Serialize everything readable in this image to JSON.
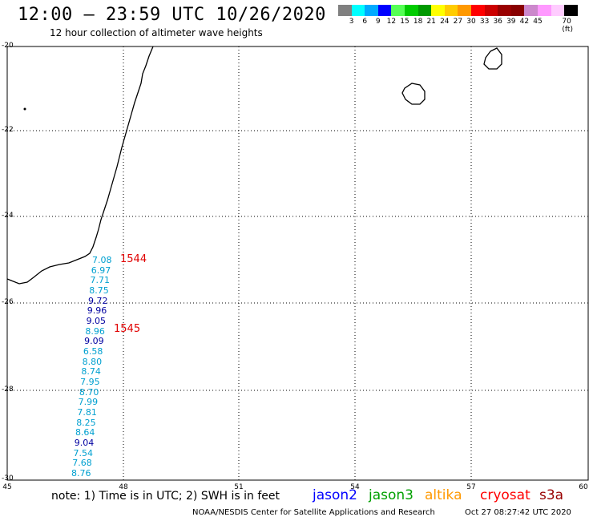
{
  "header": {
    "title": "12:00 – 23:59 UTC 10/26/2020",
    "subtitle": "12 hour collection of altimeter wave heights"
  },
  "legend": {
    "colors": [
      "#808080",
      "#00ffff",
      "#00aaff",
      "#0000ff",
      "#55ff55",
      "#00cc00",
      "#009900",
      "#ffff00",
      "#ffcc00",
      "#ff9900",
      "#ff0000",
      "#cc0000",
      "#990000",
      "#880000",
      "#cc88cc",
      "#ff99ff",
      "#ffccff",
      "#000000"
    ],
    "labels": [
      "3",
      "6",
      "9",
      "12",
      "15",
      "18",
      "21",
      "24",
      "27",
      "30",
      "33",
      "36",
      "39",
      "42",
      "45",
      "70 (ft)"
    ]
  },
  "axes": {
    "y_labels": [
      "-20",
      "-22",
      "-24",
      "-26",
      "-28",
      "-30"
    ],
    "x_labels": [
      "45",
      "48",
      "51",
      "54",
      "57",
      "60"
    ]
  },
  "observations": {
    "swh": [
      {
        "v": "7.08",
        "c": "#00a0d0"
      },
      {
        "v": "6.97",
        "c": "#00a0d0"
      },
      {
        "v": "7.71",
        "c": "#00a0d0"
      },
      {
        "v": "8.75",
        "c": "#00a0d0"
      },
      {
        "v": "9.72",
        "c": "#0000a0"
      },
      {
        "v": "9.96",
        "c": "#0000a0"
      },
      {
        "v": "9.05",
        "c": "#0000a0"
      },
      {
        "v": "8.96",
        "c": "#00a0d0"
      },
      {
        "v": "9.09",
        "c": "#0000a0"
      },
      {
        "v": "6.58",
        "c": "#00a0d0"
      },
      {
        "v": "8.80",
        "c": "#00a0d0"
      },
      {
        "v": "8.74",
        "c": "#00a0d0"
      },
      {
        "v": "7.95",
        "c": "#00a0d0"
      },
      {
        "v": "8.70",
        "c": "#00a0d0"
      },
      {
        "v": "7.99",
        "c": "#00a0d0"
      },
      {
        "v": "7.81",
        "c": "#00a0d0"
      },
      {
        "v": "8.25",
        "c": "#00a0d0"
      },
      {
        "v": "8.64",
        "c": "#00a0d0"
      },
      {
        "v": "9.04",
        "c": "#0000a0"
      },
      {
        "v": "7.54",
        "c": "#00a0d0"
      },
      {
        "v": "7.68",
        "c": "#00a0d0"
      },
      {
        "v": "8.76",
        "c": "#00a0d0"
      }
    ],
    "times": [
      "1544",
      "1545"
    ]
  },
  "footer": {
    "note": "note: 1) Time is in UTC; 2) SWH is in feet",
    "satellites": [
      {
        "name": "jason2",
        "color": "#0000ff"
      },
      {
        "name": "jason3",
        "color": "#00a000"
      },
      {
        "name": "altika",
        "color": "#ff9900"
      },
      {
        "name": "cryosat",
        "color": "#ff0000"
      },
      {
        "name": "s3a",
        "color": "#990000"
      }
    ],
    "credit": "NOAA/NESDIS Center for Satellite Applications and Research",
    "timestamp": "Oct 27 08:27:42 UTC 2020"
  }
}
